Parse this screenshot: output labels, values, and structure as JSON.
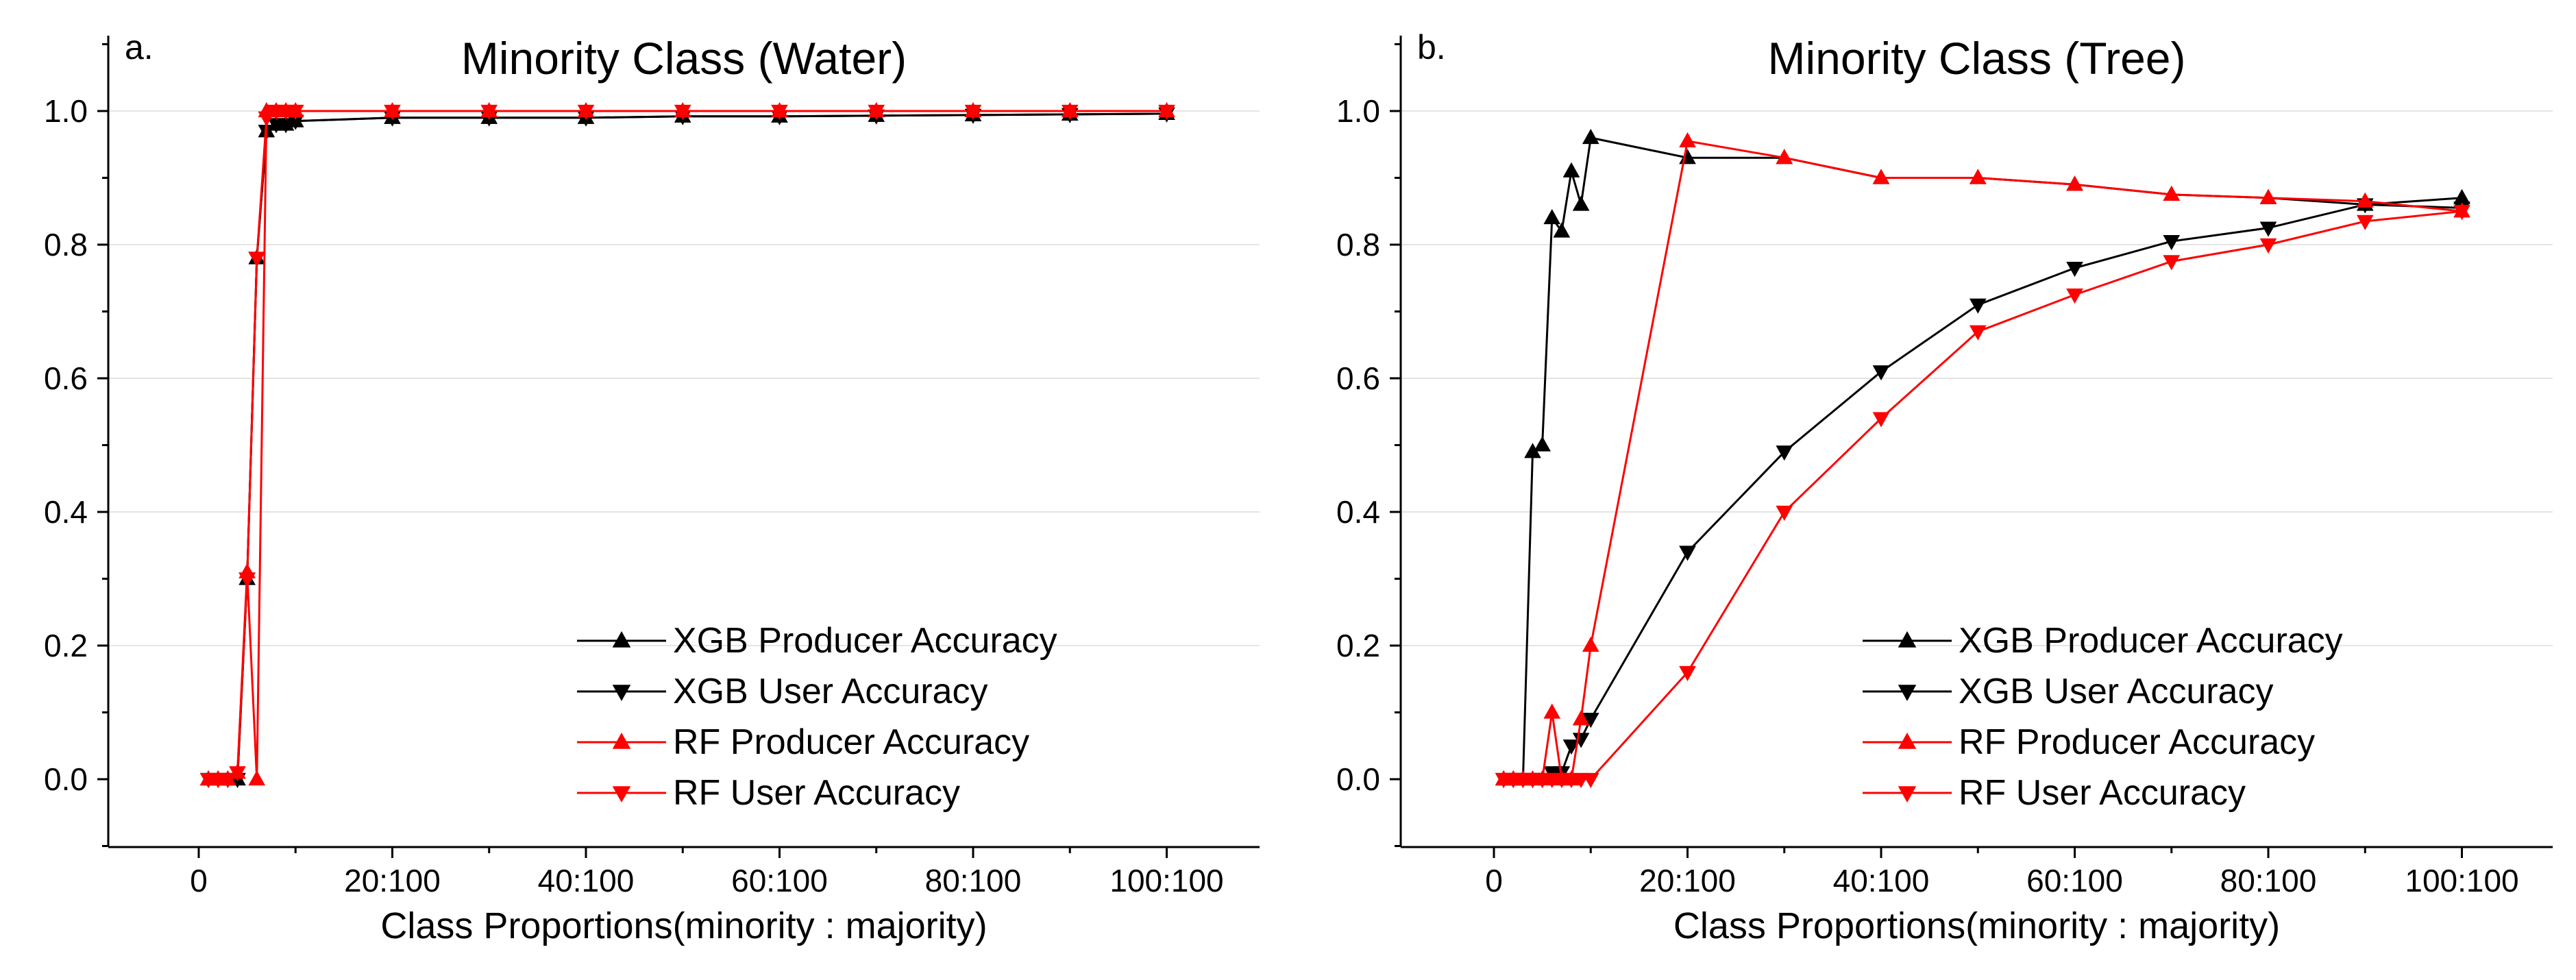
{
  "panels": [
    {
      "letter": "a."
    },
    {
      "letter": "b."
    }
  ],
  "chart_data": [
    {
      "type": "line",
      "title": "Minority Class (Water)",
      "xlabel": "Class Proportions(minority : majority)",
      "ylabel": "",
      "xlim": [
        -10,
        108
      ],
      "ylim": [
        -0.1,
        1.1
      ],
      "xticks": [
        0,
        20,
        40,
        60,
        80,
        100
      ],
      "xtick_labels": [
        "0",
        "20:100",
        "40:100",
        "60:100",
        "80:100",
        "100:100"
      ],
      "yticks": [
        0.0,
        0.2,
        0.4,
        0.6,
        0.8,
        1.0
      ],
      "ytick_labels": [
        "0.0",
        "0.2",
        "0.4",
        "0.6",
        "0.8",
        "1.0"
      ],
      "grid": "horizontal",
      "legend_position": "bottom-right",
      "x": [
        1,
        2,
        3,
        4,
        5,
        6,
        7,
        8,
        9,
        10,
        20,
        30,
        40,
        50,
        60,
        70,
        80,
        90,
        100
      ],
      "series": [
        {
          "name": "XGB Producer Accuracy",
          "color": "#000000",
          "marker": "triangle-up",
          "values": [
            0.0,
            0.0,
            0.0,
            0.0,
            0.3,
            0.78,
            0.97,
            0.98,
            0.98,
            0.985,
            0.99,
            0.99,
            0.99,
            0.992,
            0.992,
            0.993,
            0.994,
            0.995,
            0.996
          ]
        },
        {
          "name": "XGB User Accuracy",
          "color": "#000000",
          "marker": "triangle-down",
          "values": [
            0.0,
            0.0,
            0.0,
            0.0,
            0.3,
            0.78,
            0.97,
            0.98,
            0.98,
            0.985,
            0.99,
            0.99,
            0.99,
            0.992,
            0.992,
            0.993,
            0.994,
            0.995,
            0.996
          ]
        },
        {
          "name": "RF Producer Accuracy",
          "color": "#ff0000",
          "marker": "triangle-up",
          "values": [
            0.0,
            0.0,
            0.0,
            0.01,
            0.31,
            0.0,
            1.0,
            1.0,
            1.0,
            1.0,
            1.0,
            1.0,
            1.0,
            1.0,
            1.0,
            1.0,
            1.0,
            1.0,
            1.0
          ]
        },
        {
          "name": "RF User Accuracy",
          "color": "#ff0000",
          "marker": "triangle-down",
          "values": [
            0.0,
            0.0,
            0.0,
            0.01,
            0.3,
            0.78,
            0.99,
            1.0,
            1.0,
            1.0,
            1.0,
            1.0,
            1.0,
            1.0,
            1.0,
            1.0,
            1.0,
            1.0,
            1.0
          ]
        }
      ]
    },
    {
      "type": "line",
      "title": "Minority Class (Tree)",
      "xlabel": "Class Proportions(minority : majority)",
      "ylabel": "",
      "xlim": [
        -10,
        108
      ],
      "ylim": [
        -0.1,
        1.1
      ],
      "xticks": [
        0,
        20,
        40,
        60,
        80,
        100
      ],
      "xtick_labels": [
        "0",
        "20:100",
        "40:100",
        "60:100",
        "80:100",
        "100:100"
      ],
      "yticks": [
        0.0,
        0.2,
        0.4,
        0.6,
        0.8,
        1.0
      ],
      "ytick_labels": [
        "0.0",
        "0.2",
        "0.4",
        "0.6",
        "0.8",
        "1.0"
      ],
      "grid": "horizontal",
      "legend_position": "bottom-right",
      "x": [
        1,
        2,
        3,
        4,
        5,
        6,
        7,
        8,
        9,
        10,
        20,
        30,
        40,
        50,
        60,
        70,
        80,
        90,
        100
      ],
      "series": [
        {
          "name": "XGB Producer Accuracy",
          "color": "#000000",
          "marker": "triangle-up",
          "values": [
            0.0,
            0.0,
            0.0,
            0.49,
            0.5,
            0.84,
            0.82,
            0.91,
            0.86,
            0.96,
            0.93,
            0.93,
            0.9,
            0.9,
            0.89,
            0.875,
            0.87,
            0.86,
            0.87
          ]
        },
        {
          "name": "XGB User Accuracy",
          "color": "#000000",
          "marker": "triangle-down",
          "values": [
            0.0,
            0.0,
            0.0,
            0.0,
            0.0,
            0.01,
            0.01,
            0.05,
            0.06,
            0.09,
            0.34,
            0.49,
            0.61,
            0.71,
            0.765,
            0.805,
            0.825,
            0.86,
            0.855
          ]
        },
        {
          "name": "RF Producer Accuracy",
          "color": "#ff0000",
          "marker": "triangle-up",
          "values": [
            0.0,
            0.0,
            0.0,
            0.0,
            0.0,
            0.1,
            0.0,
            0.0,
            0.09,
            0.2,
            0.955,
            0.93,
            0.9,
            0.9,
            0.89,
            0.875,
            0.87,
            0.865,
            0.85
          ]
        },
        {
          "name": "RF User Accuracy",
          "color": "#ff0000",
          "marker": "triangle-down",
          "values": [
            0.0,
            0.0,
            0.0,
            0.0,
            0.0,
            0.0,
            0.0,
            0.0,
            0.0,
            0.0,
            0.16,
            0.4,
            0.54,
            0.67,
            0.725,
            0.775,
            0.8,
            0.835,
            0.85
          ]
        }
      ]
    }
  ]
}
